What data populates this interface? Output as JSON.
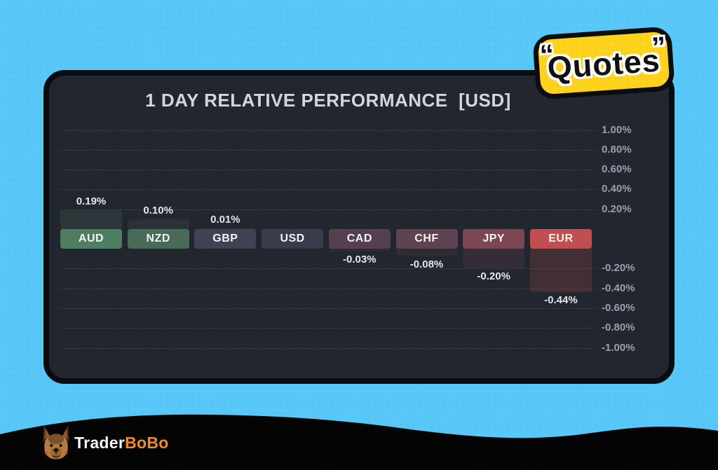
{
  "badge": {
    "open_quote": "“",
    "text": "Quotes",
    "close_quote": "”",
    "bg_color": "#FFD21E"
  },
  "brand": {
    "trader": "Trader",
    "bobo": "BoBo",
    "accent_color": "#F08A2A",
    "dog_icon": "dog-face-icon"
  },
  "chart_data": {
    "type": "bar",
    "title": "1 DAY RELATIVE PERFORMANCE  [USD]",
    "categories": [
      "AUD",
      "NZD",
      "GBP",
      "USD",
      "CAD",
      "CHF",
      "JPY",
      "EUR"
    ],
    "values": [
      0.19,
      0.1,
      0.01,
      0.0,
      -0.03,
      -0.08,
      -0.2,
      -0.44
    ],
    "value_labels": [
      "0.19%",
      "0.10%",
      "0.01%",
      "",
      "-0.03%",
      "-0.08%",
      "-0.20%",
      "-0.44%"
    ],
    "bar_colors": [
      "#4E7D60",
      "#486B58",
      "#3F4354",
      "#383D4C",
      "#55414E",
      "#604351",
      "#7B4753",
      "#C24F4F"
    ],
    "ytick_labels": [
      "1.00%",
      "0.80%",
      "0.60%",
      "0.40%",
      "0.20%",
      "-0.20%",
      "-0.40%",
      "-0.60%",
      "-0.80%",
      "-1.00%"
    ],
    "ytick_values": [
      1.0,
      0.8,
      0.6,
      0.4,
      0.2,
      -0.2,
      -0.4,
      -0.6,
      -0.8,
      -1.0
    ],
    "ylim": [
      -1.0,
      1.0
    ],
    "grid": "dashed horizontal",
    "legend": "none",
    "axis_side": "right",
    "background": "#22262F",
    "canvas_background": "#58C8F8"
  }
}
